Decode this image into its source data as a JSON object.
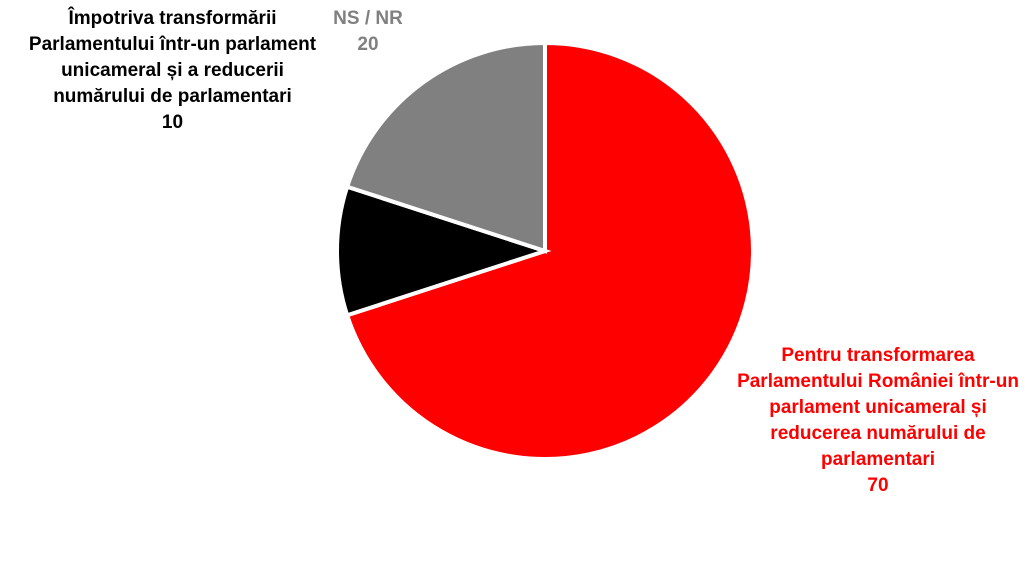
{
  "chart_data": {
    "type": "pie",
    "categories": [
      "Pentru transformarea Parlamentului României într-un parlament unicameral și reducerea numărului de parlamentari",
      "Împotriva transformării Parlamentului într-un parlament unicameral și a reducerii numărului de parlamentari",
      "NS / NR"
    ],
    "values": [
      70,
      10,
      20
    ],
    "colors": [
      "#ff0000",
      "#000000",
      "#808080"
    ]
  }
}
